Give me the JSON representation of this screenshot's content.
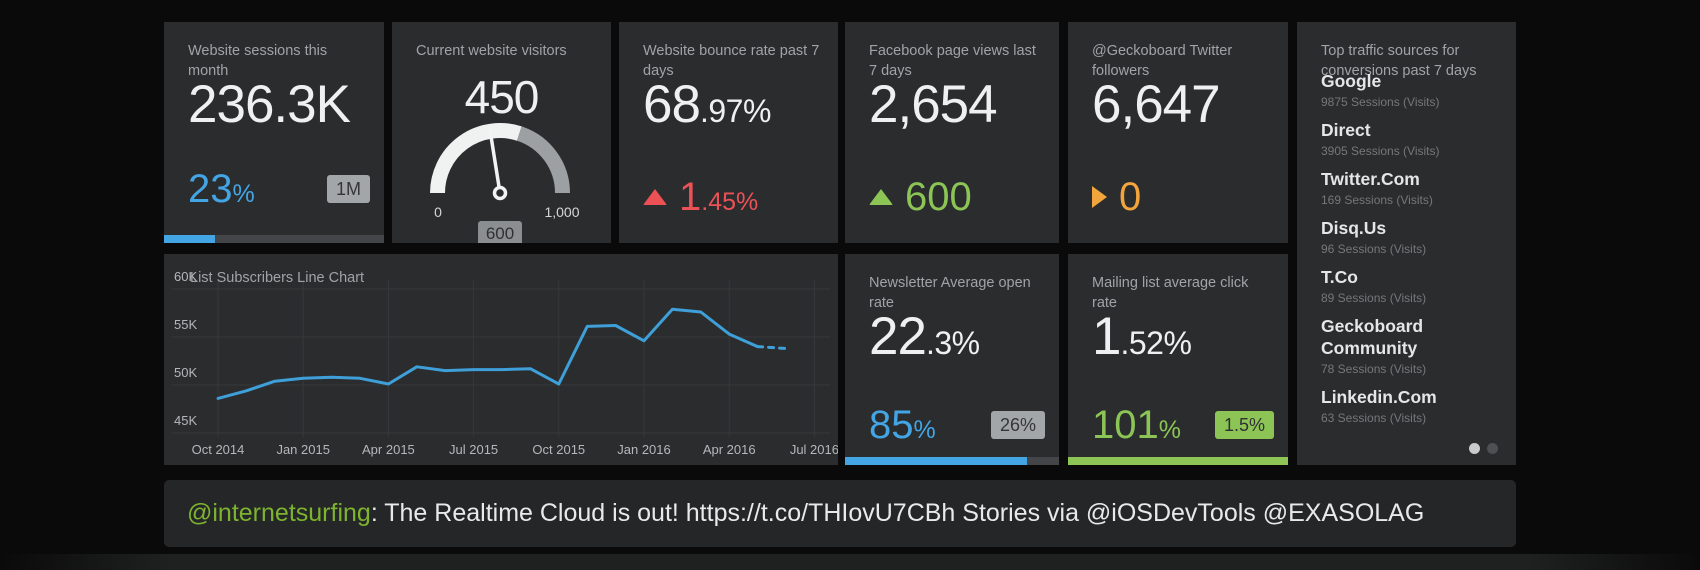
{
  "theme": {
    "page_bg": "#0a0a0b",
    "widget_bg": "#2a2c2e",
    "accent_blue": "#43a5e4",
    "accent_green": "#8cc455",
    "accent_red": "#ec5156",
    "accent_orange": "#f2a53d",
    "title_gray": "#a0a4a7"
  },
  "widgets": {
    "sessions": {
      "title": "Website sessions this month",
      "value": "236.3K",
      "delta": "23",
      "delta_unit": "%",
      "badge": "1M",
      "progress_pct": 23
    },
    "visitors": {
      "title": "Current website visitors",
      "value": "450",
      "value_num": 450,
      "min": 0,
      "max": 1000,
      "min_label": "0",
      "max_label": "1,000",
      "comparison_num": 600,
      "comparison_label": "600"
    },
    "bounce": {
      "title": "Website bounce rate past 7 days",
      "value_main": "68",
      "value_frac": ".97%",
      "delta_main": "1",
      "delta_frac": ".45%",
      "trend": "up"
    },
    "facebook": {
      "title": "Facebook page views last 7 days",
      "value": "2,654",
      "delta": "600",
      "trend": "up"
    },
    "twitter": {
      "title": "@Geckoboard Twitter followers",
      "value": "6,647",
      "delta": "0",
      "trend": "flat"
    },
    "traffic": {
      "title": "Top traffic sources for conversions past 7 days",
      "items": [
        {
          "name": "Google",
          "sessions": "9875 Sessions (Visits)"
        },
        {
          "name": "Direct",
          "sessions": "3905 Sessions (Visits)"
        },
        {
          "name": "Twitter.Com",
          "sessions": "169 Sessions (Visits)"
        },
        {
          "name": "Disq.Us",
          "sessions": "96 Sessions (Visits)"
        },
        {
          "name": "T.Co",
          "sessions": "89 Sessions (Visits)"
        },
        {
          "name": "Geckoboard Community",
          "sessions": "78 Sessions (Visits)"
        },
        {
          "name": "Linkedin.Com",
          "sessions": "63 Sessions (Visits)"
        }
      ],
      "pagination": {
        "total_dots": 2,
        "active_dot": 1
      }
    },
    "subscribers_chart": {
      "title": "List Subscribers Line Chart",
      "chart_data": {
        "type": "line",
        "title": "List Subscribers Line Chart",
        "unit": "subscribers, thousands",
        "x": [
          "Oct 2014",
          "Nov 2014",
          "Dec 2014",
          "Jan 2015",
          "Feb 2015",
          "Mar 2015",
          "Apr 2015",
          "May 2015",
          "Jun 2015",
          "Jul 2015",
          "Aug 2015",
          "Sep 2015",
          "Oct 2015",
          "Nov 2015",
          "Dec 2015",
          "Jan 2016",
          "Feb 2016",
          "Mar 2016",
          "Apr 2016",
          "May 2016",
          "Jun 2016"
        ],
        "values": [
          48.6,
          49.4,
          50.4,
          50.7,
          50.8,
          50.7,
          50.1,
          51.9,
          51.5,
          51.6,
          51.6,
          51.7,
          50.1,
          56.1,
          56.2,
          54.6,
          57.9,
          57.6,
          55.3,
          54.0,
          53.8
        ],
        "dashed_from_index": 19,
        "y_tick_values": [
          60,
          55,
          50,
          45
        ],
        "y_tick_labels": [
          "60K",
          "55K",
          "50K",
          "45K"
        ],
        "x_tick_labels": [
          "Oct 2014",
          "Jan 2015",
          "Apr 2015",
          "Jul 2015",
          "Oct 2015",
          "Jan 2016",
          "Apr 2016",
          "Jul 2016"
        ],
        "ylim": [
          44,
          61
        ],
        "grid": true,
        "legend": false,
        "line_color": "#3f9fd9"
      }
    },
    "open_rate": {
      "title": "Newsletter Average open rate",
      "value_main": "22",
      "value_frac": ".3%",
      "delta": "85",
      "delta_unit": "%",
      "badge": "26%",
      "progress_pct": 85
    },
    "click_rate": {
      "title": "Mailing list average click rate",
      "value_main": "1",
      "value_frac": ".52%",
      "delta": "101",
      "delta_unit": "%",
      "badge": "1.5%",
      "progress_pct": 100
    }
  },
  "ticker": {
    "handle": "@internetsurfing",
    "message": ": The Realtime Cloud is out! https://t.co/THIovU7CBh Stories via @iOSDevTools @EXASOLAG"
  }
}
